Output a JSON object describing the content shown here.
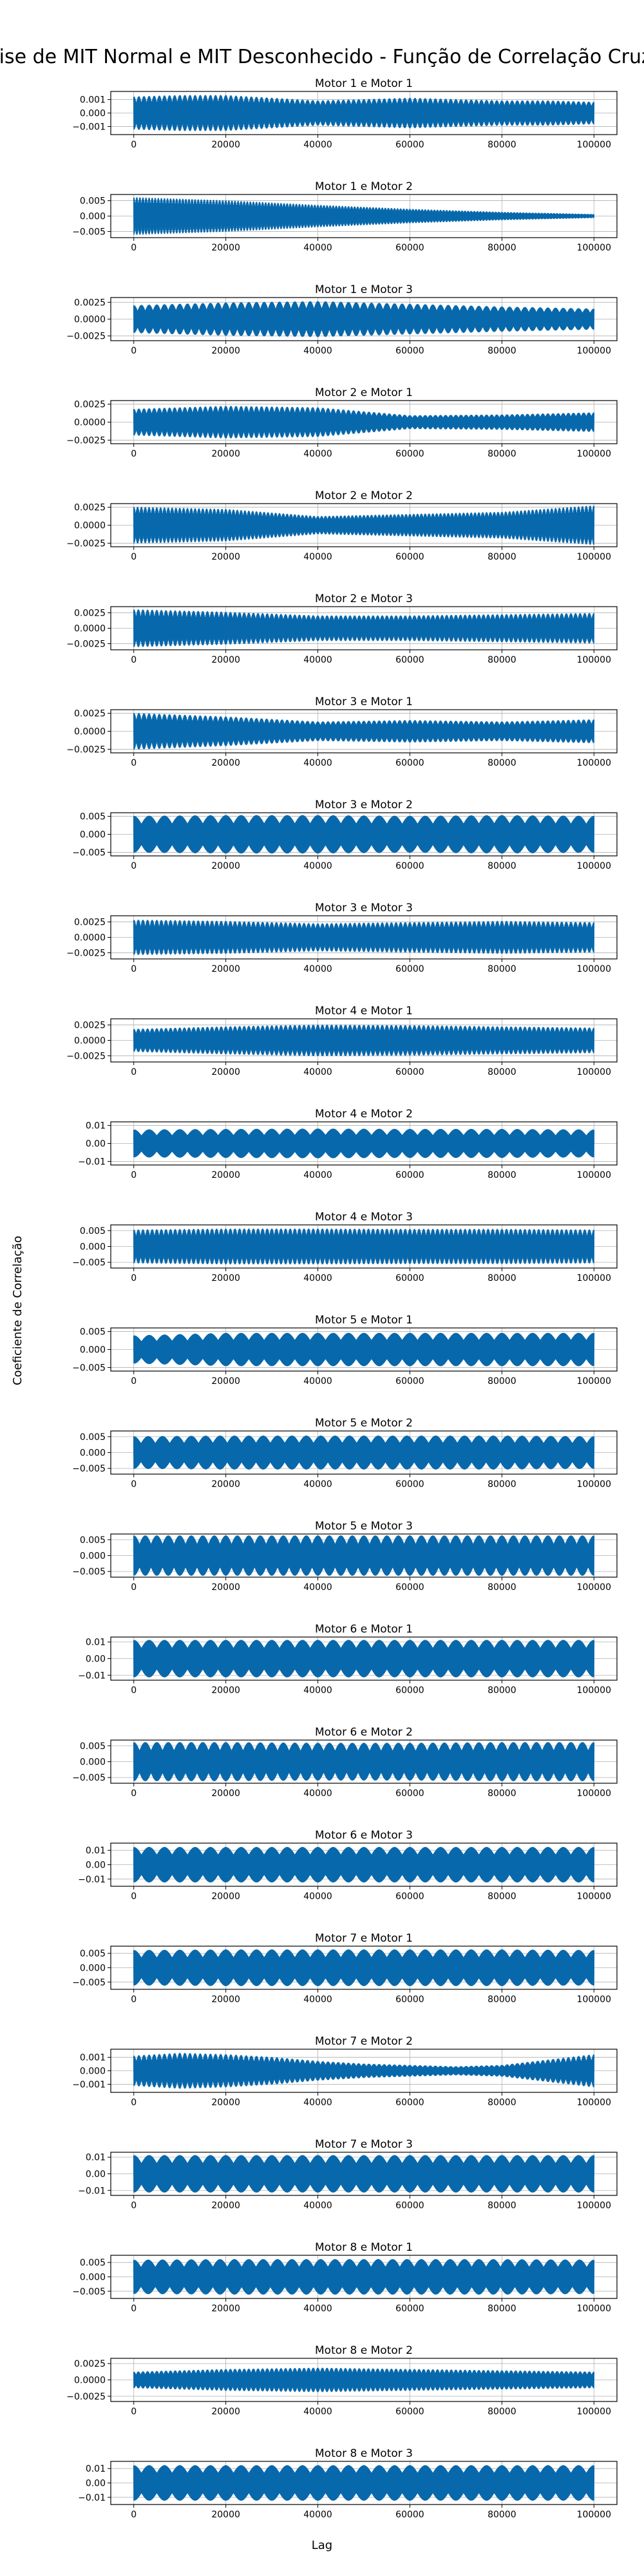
{
  "chart_data": {
    "type": "line",
    "title": "Análise de MIT Normal e MIT Desconhecido - Função de Correlação Cruzada",
    "xlabel": "Lag",
    "ylabel": "Coeficiente de Correlação",
    "grid": true,
    "series_color": "#0868ac",
    "x_ticks": [
      0,
      20000,
      40000,
      60000,
      80000,
      100000
    ],
    "x_tick_labels": [
      "0",
      "20000",
      "40000",
      "60000",
      "80000",
      "100000"
    ],
    "xlim": [
      -5000,
      105000
    ],
    "panels": [
      {
        "title": "Motor 1 e Motor 1",
        "ylim": [
          -0.0016,
          0.0016
        ],
        "yticks": [
          -0.001,
          0.0,
          0.001
        ],
        "ytick_labels": [
          "−0.001",
          "0.000",
          "0.001"
        ],
        "envelope_lag": [
          0,
          10000,
          20000,
          30000,
          40000,
          50000,
          60000,
          70000,
          80000,
          90000,
          100000
        ],
        "envelope_amp": [
          0.0012,
          0.0013,
          0.0013,
          0.0011,
          0.0009,
          0.001,
          0.0011,
          0.001,
          0.0009,
          0.0009,
          0.0008
        ],
        "cycles": 90
      },
      {
        "title": "Motor 1 e Motor 2",
        "ylim": [
          -0.007,
          0.007
        ],
        "yticks": [
          -0.005,
          0.0,
          0.005
        ],
        "ytick_labels": [
          "−0.005",
          "0.000",
          "0.005"
        ],
        "envelope_lag": [
          0,
          20000,
          40000,
          60000,
          80000,
          100000
        ],
        "envelope_amp": [
          0.006,
          0.005,
          0.0035,
          0.0022,
          0.0012,
          0.0005
        ],
        "cycles": 150
      },
      {
        "title": "Motor 1 e Motor 3",
        "ylim": [
          -0.0032,
          0.0032
        ],
        "yticks": [
          -0.0025,
          0.0,
          0.0025
        ],
        "ytick_labels": [
          "−0.0025",
          "0.0000",
          "0.0025"
        ],
        "envelope_lag": [
          0,
          20000,
          40000,
          60000,
          80000,
          100000
        ],
        "envelope_amp": [
          0.002,
          0.0024,
          0.0026,
          0.0022,
          0.0018,
          0.0015
        ],
        "cycles": 60
      },
      {
        "title": "Motor 2 e Motor 1",
        "ylim": [
          -0.003,
          0.003
        ],
        "yticks": [
          -0.0025,
          0.0,
          0.0025
        ],
        "ytick_labels": [
          "−0.0025",
          "0.0000",
          "0.0025"
        ],
        "envelope_lag": [
          0,
          20000,
          40000,
          60000,
          80000,
          100000
        ],
        "envelope_amp": [
          0.0018,
          0.0022,
          0.002,
          0.0009,
          0.001,
          0.0013
        ],
        "cycles": 90
      },
      {
        "title": "Motor 2 e Motor 2",
        "ylim": [
          -0.003,
          0.003
        ],
        "yticks": [
          -0.0025,
          0.0,
          0.0025
        ],
        "ytick_labels": [
          "−0.0025",
          "0.0000",
          "0.0025"
        ],
        "envelope_lag": [
          0,
          20000,
          40000,
          60000,
          80000,
          100000
        ],
        "envelope_amp": [
          0.0025,
          0.0022,
          0.0012,
          0.0015,
          0.0018,
          0.0027
        ],
        "cycles": 120
      },
      {
        "title": "Motor 2 e Motor 3",
        "ylim": [
          -0.0035,
          0.0035
        ],
        "yticks": [
          -0.0025,
          0.0,
          0.0025
        ],
        "ytick_labels": [
          "−0.0025",
          "0.0000",
          "0.0025"
        ],
        "envelope_lag": [
          0,
          20000,
          40000,
          60000,
          80000,
          100000
        ],
        "envelope_amp": [
          0.003,
          0.0026,
          0.002,
          0.002,
          0.0022,
          0.0024
        ],
        "cycles": 100
      },
      {
        "title": "Motor 3 e Motor 1",
        "ylim": [
          -0.003,
          0.003
        ],
        "yticks": [
          -0.0025,
          0.0,
          0.0025
        ],
        "ytick_labels": [
          "−0.0025",
          "0.0000",
          "0.0025"
        ],
        "envelope_lag": [
          0,
          20000,
          40000,
          60000,
          80000,
          100000
        ],
        "envelope_amp": [
          0.0025,
          0.002,
          0.0013,
          0.0015,
          0.0013,
          0.0016
        ],
        "cycles": 90
      },
      {
        "title": "Motor 3 e Motor 2",
        "ylim": [
          -0.006,
          0.006
        ],
        "yticks": [
          -0.005,
          0.0,
          0.005
        ],
        "ytick_labels": [
          "−0.005",
          "0.000",
          "0.005"
        ],
        "envelope_lag": [
          0,
          20000,
          40000,
          60000,
          80000,
          100000
        ],
        "envelope_amp": [
          0.005,
          0.0052,
          0.0052,
          0.005,
          0.0052,
          0.005
        ],
        "cycles": 30
      },
      {
        "title": "Motor 3 e Motor 3",
        "ylim": [
          -0.0035,
          0.0035
        ],
        "yticks": [
          -0.0025,
          0.0,
          0.0025
        ],
        "ytick_labels": [
          "−0.0025",
          "0.0000",
          "0.0025"
        ],
        "envelope_lag": [
          0,
          20000,
          40000,
          60000,
          80000,
          100000
        ],
        "envelope_amp": [
          0.0028,
          0.0026,
          0.0022,
          0.0024,
          0.0026,
          0.0024
        ],
        "cycles": 100
      },
      {
        "title": "Motor 4 e Motor 1",
        "ylim": [
          -0.0035,
          0.0035
        ],
        "yticks": [
          -0.0025,
          0.0,
          0.0025
        ],
        "ytick_labels": [
          "−0.0025",
          "0.0000",
          "0.0025"
        ],
        "envelope_lag": [
          0,
          20000,
          40000,
          60000,
          80000,
          100000
        ],
        "envelope_amp": [
          0.0018,
          0.0022,
          0.0025,
          0.0024,
          0.0022,
          0.002
        ],
        "cycles": 100
      },
      {
        "title": "Motor 4 e Motor 2",
        "ylim": [
          -0.012,
          0.012
        ],
        "yticks": [
          -0.01,
          0.0,
          0.01
        ],
        "ytick_labels": [
          "−0.01",
          "0.00",
          "0.01"
        ],
        "envelope_lag": [
          0,
          20000,
          40000,
          60000,
          80000,
          100000
        ],
        "envelope_amp": [
          0.0075,
          0.0078,
          0.008,
          0.0078,
          0.0078,
          0.0075
        ],
        "cycles": 30
      },
      {
        "title": "Motor 4 e Motor 3",
        "ylim": [
          -0.0068,
          0.0068
        ],
        "yticks": [
          -0.005,
          0.0,
          0.005
        ],
        "ytick_labels": [
          "−0.005",
          "0.000",
          "0.005"
        ],
        "envelope_lag": [
          0,
          20000,
          40000,
          60000,
          80000,
          100000
        ],
        "envelope_amp": [
          0.0052,
          0.0055,
          0.0055,
          0.0054,
          0.0054,
          0.0052
        ],
        "cycles": 100
      },
      {
        "title": "Motor 5 e Motor 1",
        "ylim": [
          -0.006,
          0.006
        ],
        "yticks": [
          -0.005,
          0.0,
          0.005
        ],
        "ytick_labels": [
          "−0.005",
          "0.000",
          "0.005"
        ],
        "envelope_lag": [
          0,
          20000,
          40000,
          60000,
          80000,
          100000
        ],
        "envelope_amp": [
          0.0038,
          0.0045,
          0.0045,
          0.0045,
          0.0045,
          0.0045
        ],
        "cycles": 30
      },
      {
        "title": "Motor 5 e Motor 2",
        "ylim": [
          -0.0068,
          0.0068
        ],
        "yticks": [
          -0.005,
          0.0,
          0.005
        ],
        "ytick_labels": [
          "−0.005",
          "0.000",
          "0.005"
        ],
        "envelope_lag": [
          0,
          20000,
          40000,
          60000,
          80000,
          100000
        ],
        "envelope_amp": [
          0.005,
          0.0052,
          0.0052,
          0.0052,
          0.0052,
          0.005
        ],
        "cycles": 32
      },
      {
        "title": "Motor 5 e Motor 3",
        "ylim": [
          -0.0068,
          0.0068
        ],
        "yticks": [
          -0.005,
          0.0,
          0.005
        ],
        "ytick_labels": [
          "−0.005",
          "0.000",
          "0.005"
        ],
        "envelope_lag": [
          0,
          20000,
          40000,
          60000,
          80000,
          100000
        ],
        "envelope_amp": [
          0.0062,
          0.0062,
          0.0062,
          0.0062,
          0.0062,
          0.0062
        ],
        "cycles": 40
      },
      {
        "title": "Motor 6 e Motor 1",
        "ylim": [
          -0.013,
          0.013
        ],
        "yticks": [
          -0.01,
          0.0,
          0.01
        ],
        "ytick_labels": [
          "−0.01",
          "0.00",
          "0.01"
        ],
        "envelope_lag": [
          0,
          20000,
          40000,
          60000,
          80000,
          100000
        ],
        "envelope_amp": [
          0.011,
          0.011,
          0.011,
          0.011,
          0.011,
          0.011
        ],
        "cycles": 30
      },
      {
        "title": "Motor 6 e Motor 2",
        "ylim": [
          -0.0068,
          0.0068
        ],
        "yticks": [
          -0.005,
          0.0,
          0.005
        ],
        "ytick_labels": [
          "−0.005",
          "0.000",
          "0.005"
        ],
        "envelope_lag": [
          0,
          20000,
          40000,
          60000,
          80000,
          100000
        ],
        "envelope_amp": [
          0.006,
          0.006,
          0.0058,
          0.0058,
          0.006,
          0.006
        ],
        "cycles": 40
      },
      {
        "title": "Motor 6 e Motor 3",
        "ylim": [
          -0.015,
          0.015
        ],
        "yticks": [
          -0.01,
          0.0,
          0.01
        ],
        "ytick_labels": [
          "−0.01",
          "0.00",
          "0.01"
        ],
        "envelope_lag": [
          0,
          20000,
          40000,
          60000,
          80000,
          100000
        ],
        "envelope_amp": [
          0.012,
          0.012,
          0.012,
          0.012,
          0.012,
          0.012
        ],
        "cycles": 30
      },
      {
        "title": "Motor 7 e Motor 1",
        "ylim": [
          -0.0075,
          0.0075
        ],
        "yticks": [
          -0.005,
          0.0,
          0.005
        ],
        "ytick_labels": [
          "−0.005",
          "0.000",
          "0.005"
        ],
        "envelope_lag": [
          0,
          20000,
          40000,
          60000,
          80000,
          100000
        ],
        "envelope_amp": [
          0.006,
          0.0062,
          0.0062,
          0.0062,
          0.0062,
          0.006
        ],
        "cycles": 30
      },
      {
        "title": "Motor 7 e Motor 2",
        "ylim": [
          -0.0016,
          0.0016
        ],
        "yticks": [
          -0.001,
          0.0,
          0.001
        ],
        "ytick_labels": [
          "−0.001",
          "0.000",
          "0.001"
        ],
        "envelope_lag": [
          0,
          10000,
          20000,
          30000,
          40000,
          50000,
          60000,
          70000,
          80000,
          90000,
          100000
        ],
        "envelope_amp": [
          0.0011,
          0.0013,
          0.0012,
          0.001,
          0.0007,
          0.0005,
          0.0004,
          0.0003,
          0.0004,
          0.0008,
          0.0012
        ],
        "cycles": 90
      },
      {
        "title": "Motor 7 e Motor 3",
        "ylim": [
          -0.013,
          0.013
        ],
        "yticks": [
          -0.01,
          0.0,
          0.01
        ],
        "ytick_labels": [
          "−0.01",
          "0.00",
          "0.01"
        ],
        "envelope_lag": [
          0,
          20000,
          40000,
          60000,
          80000,
          100000
        ],
        "envelope_amp": [
          0.011,
          0.011,
          0.011,
          0.011,
          0.011,
          0.011
        ],
        "cycles": 30
      },
      {
        "title": "Motor 8 e Motor 1",
        "ylim": [
          -0.0075,
          0.0075
        ],
        "yticks": [
          -0.005,
          0.0,
          0.005
        ],
        "ytick_labels": [
          "−0.005",
          "0.000",
          "0.005"
        ],
        "envelope_lag": [
          0,
          20000,
          40000,
          60000,
          80000,
          100000
        ],
        "envelope_amp": [
          0.0058,
          0.006,
          0.006,
          0.006,
          0.006,
          0.0058
        ],
        "cycles": 32
      },
      {
        "title": "Motor 8 e Motor 2",
        "ylim": [
          -0.0033,
          0.0033
        ],
        "yticks": [
          -0.0025,
          0.0,
          0.0025
        ],
        "ytick_labels": [
          "−0.0025",
          "0.0000",
          "0.0025"
        ],
        "envelope_lag": [
          0,
          20000,
          40000,
          60000,
          80000,
          100000
        ],
        "envelope_amp": [
          0.0012,
          0.0016,
          0.0018,
          0.0016,
          0.0014,
          0.0012
        ],
        "cycles": 100
      },
      {
        "title": "Motor 8 e Motor 3",
        "ylim": [
          -0.015,
          0.015
        ],
        "yticks": [
          -0.01,
          0.0,
          0.01
        ],
        "ytick_labels": [
          "−0.01",
          "0.00",
          "0.01"
        ],
        "envelope_lag": [
          0,
          20000,
          40000,
          60000,
          80000,
          100000
        ],
        "envelope_amp": [
          0.012,
          0.012,
          0.012,
          0.012,
          0.012,
          0.012
        ],
        "cycles": 30
      }
    ]
  }
}
